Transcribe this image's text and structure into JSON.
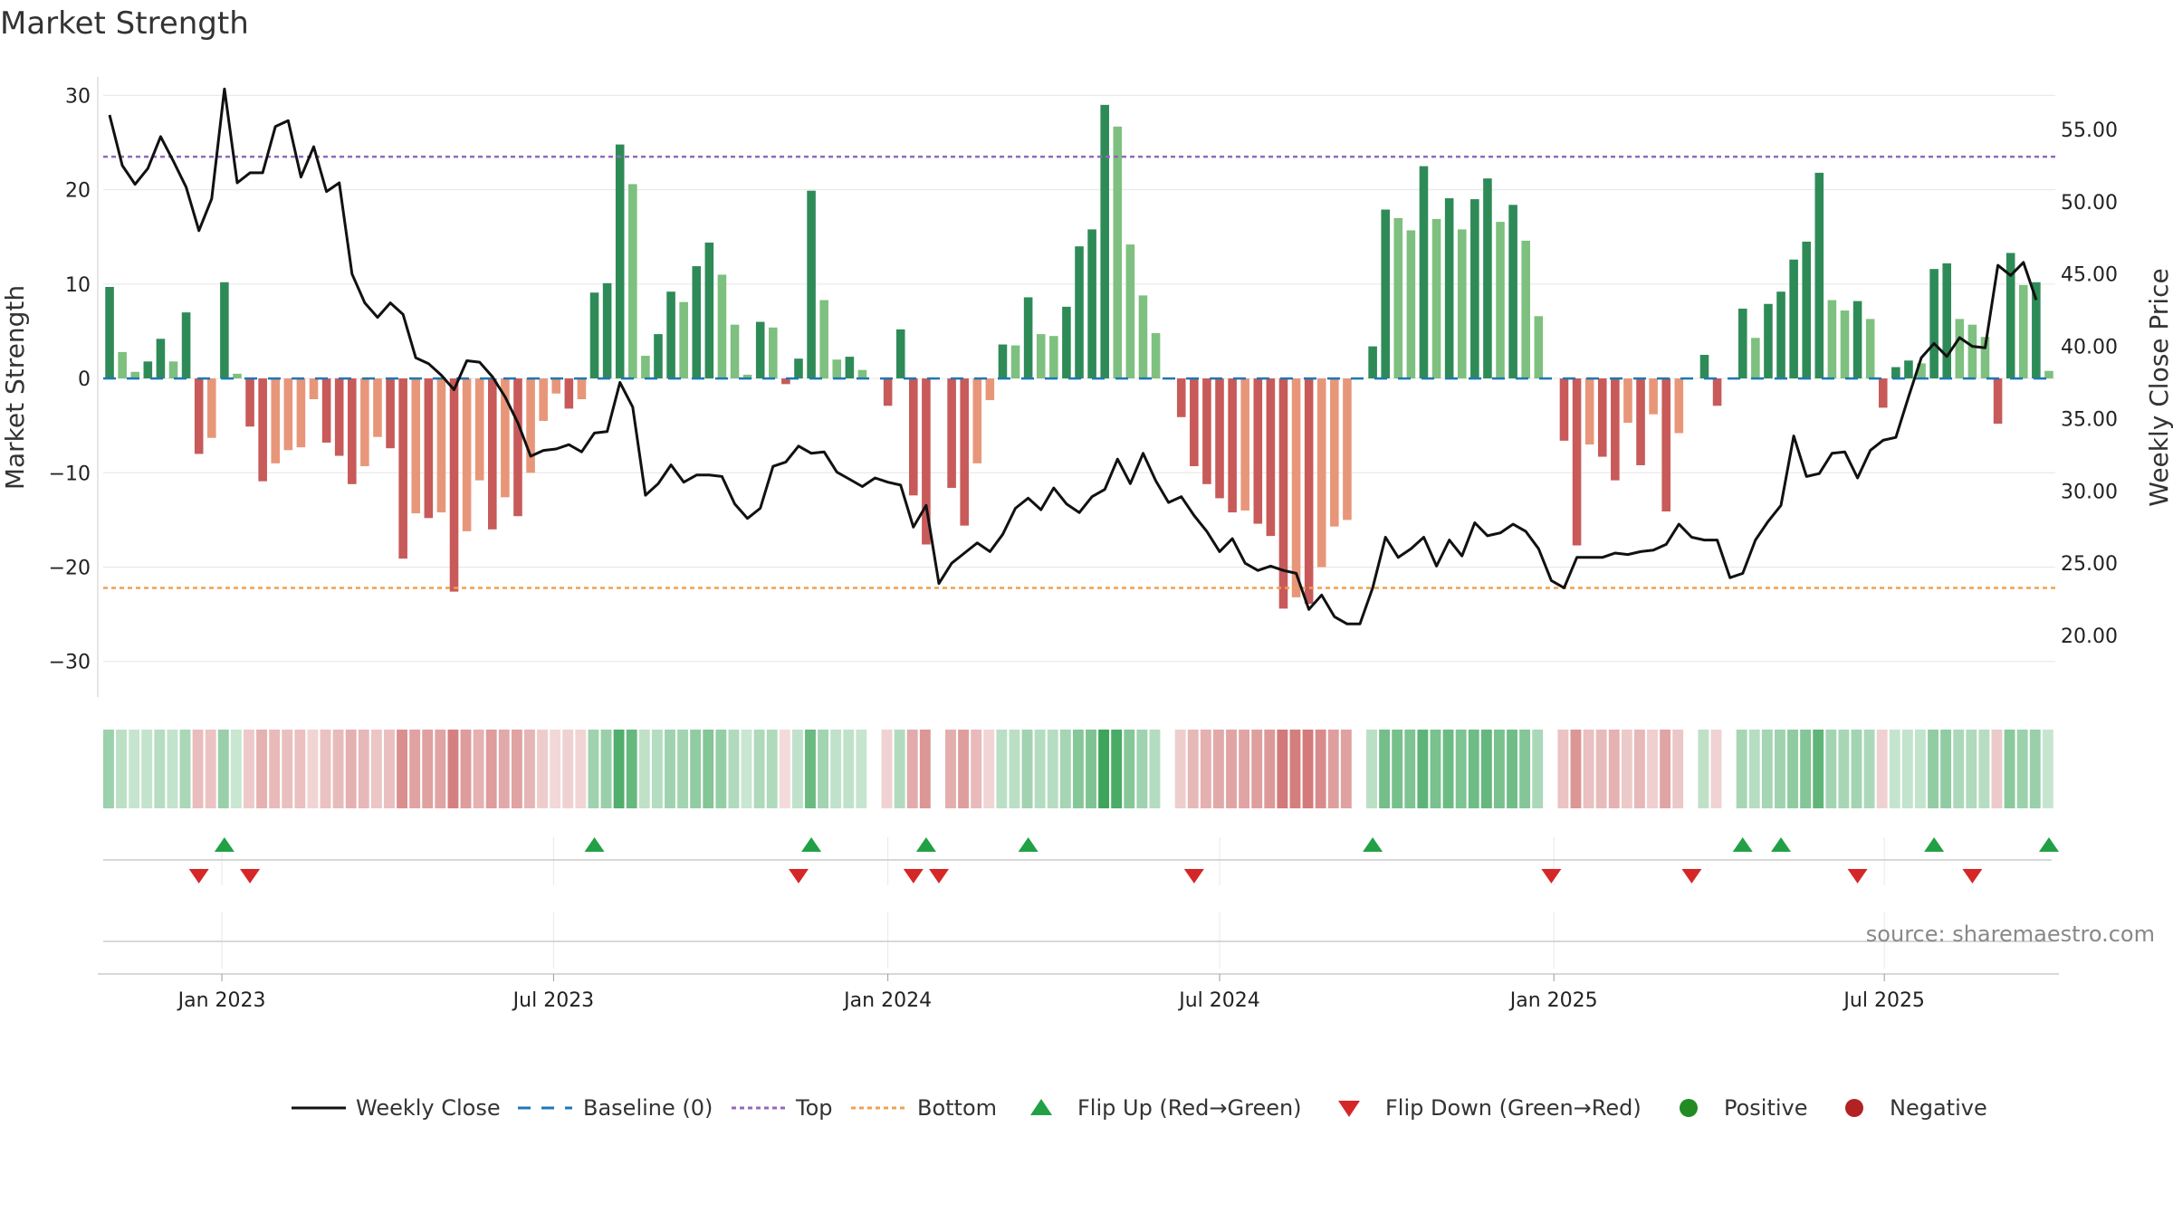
{
  "title": "Market Strength",
  "source": "source: sharemaestro.com",
  "colors": {
    "pos_dark": "#2e8b57",
    "pos_light": "#7ec07f",
    "neg_dark": "#c85a5a",
    "neg_light": "#e8967a",
    "close": "#111111",
    "baseline": "#1f77b4",
    "top": "#9467bd",
    "bottom": "#f0a050",
    "flip_up": "#22a045",
    "flip_down": "#d62728",
    "positive": "#228b22",
    "negative": "#b22222"
  },
  "chart_data": {
    "type": "bar",
    "title": "Market Strength",
    "ylabel": "Market Strength",
    "y2label": "Weekly Close Price",
    "ylim": [
      -33,
      31
    ],
    "y2lim": [
      16.25,
      58.0
    ],
    "yticks": [
      30,
      20,
      10,
      0,
      -10,
      -20,
      -30
    ],
    "ytick_labels": [
      "30",
      "20",
      "10",
      "0",
      "−10",
      "−20",
      "−30"
    ],
    "y2ticks": [
      55,
      50,
      45,
      40,
      35,
      30,
      25,
      20
    ],
    "y2tick_labels": [
      "55.00",
      "50.00",
      "45.00",
      "40.00",
      "35.00",
      "30.00",
      "25.00",
      "20.00"
    ],
    "x_tick_labels": [
      {
        "week": 9.3,
        "label": "Jan 2023"
      },
      {
        "week": 35.3,
        "label": "Jul 2023"
      },
      {
        "week": 61.5,
        "label": "Jan 2024"
      },
      {
        "week": 87.5,
        "label": "Jul 2024"
      },
      {
        "week": 113.7,
        "label": "Jan 2025"
      },
      {
        "week": 139.6,
        "label": "Jul 2025"
      }
    ],
    "first_week": "2022-11-06",
    "top": 23.5,
    "bottom": -22.2,
    "baseline": 0,
    "strength": [
      9.7,
      2.8,
      0.7,
      1.8,
      4.2,
      1.8,
      7.0,
      -8.0,
      -6.3,
      10.2,
      0.5,
      -5.1,
      -10.9,
      -9.0,
      -7.6,
      -7.3,
      -2.2,
      -6.8,
      -8.2,
      -11.2,
      -9.3,
      -6.2,
      -7.4,
      -19.1,
      -14.3,
      -14.8,
      -14.2,
      -22.6,
      -16.2,
      -10.8,
      -16.0,
      -12.6,
      -14.6,
      -10.0,
      -4.5,
      -1.6,
      -3.2,
      -2.2,
      9.1,
      10.1,
      24.8,
      20.6,
      2.4,
      4.7,
      9.2,
      8.1,
      11.9,
      14.4,
      11.0,
      5.7,
      0.4,
      6.0,
      5.4,
      -0.6,
      2.1,
      19.9,
      8.3,
      2.0,
      2.3,
      0.9,
      0,
      -2.9,
      5.2,
      -12.4,
      -17.6,
      0,
      -11.6,
      -15.6,
      -9.0,
      -2.3,
      3.6,
      3.5,
      8.6,
      4.7,
      4.5,
      7.6,
      14.0,
      15.8,
      29.0,
      26.7,
      14.2,
      8.8,
      4.8,
      0,
      -4.1,
      -9.3,
      -11.2,
      -12.7,
      -14.2,
      -14.0,
      -15.4,
      -16.7,
      -24.4,
      -23.2,
      -23.9,
      -20.0,
      -15.7,
      -15.0,
      0,
      3.4,
      17.9,
      17.0,
      15.7,
      22.5,
      16.9,
      19.1,
      15.8,
      19.0,
      21.2,
      16.6,
      18.4,
      14.6,
      6.6,
      0,
      -6.6,
      -17.7,
      -7.0,
      -8.3,
      -10.8,
      -4.7,
      -9.2,
      -3.8,
      -14.1,
      -5.8,
      0,
      2.5,
      -2.9,
      0,
      7.4,
      4.3,
      7.9,
      9.2,
      12.6,
      14.5,
      21.8,
      8.3,
      7.2,
      8.2,
      6.3,
      -3.1,
      1.2,
      1.9,
      1.6,
      11.6,
      12.2,
      6.3,
      5.7,
      4.4,
      -4.8,
      13.3,
      9.9,
      10.2,
      0.8
    ],
    "weekly_close": [
      56.0,
      52.5,
      51.2,
      52.3,
      54.5,
      52.8,
      51.0,
      48.0,
      50.2,
      57.8,
      51.3,
      52.0,
      52.0,
      55.2,
      55.6,
      51.7,
      53.8,
      50.7,
      51.3,
      45.0,
      43.0,
      42.0,
      43.0,
      42.2,
      39.2,
      38.8,
      38.0,
      37.0,
      39.0,
      38.9,
      37.9,
      36.5,
      34.7,
      32.4,
      32.8,
      32.9,
      33.2,
      32.7,
      34.0,
      34.1,
      37.5,
      35.8,
      29.7,
      30.5,
      31.8,
      30.6,
      31.1,
      31.1,
      31.0,
      29.1,
      28.1,
      28.8,
      31.7,
      32.0,
      33.1,
      32.6,
      32.7,
      31.3,
      30.8,
      30.3,
      30.9,
      30.6,
      30.4,
      27.5,
      29.0,
      23.6,
      25.0,
      25.7,
      26.4,
      25.8,
      27.0,
      28.8,
      29.5,
      28.7,
      30.2,
      29.1,
      28.5,
      29.6,
      30.1,
      32.2,
      30.5,
      32.6,
      30.7,
      29.2,
      29.6,
      28.3,
      27.2,
      25.8,
      26.7,
      25.0,
      24.5,
      24.8,
      24.5,
      24.3,
      21.8,
      22.8,
      21.3,
      20.8,
      20.8,
      23.3,
      26.8,
      25.4,
      26.0,
      26.8,
      24.8,
      26.6,
      25.5,
      27.8,
      26.9,
      27.1,
      27.7,
      27.2,
      26.0,
      23.8,
      23.3,
      25.4,
      25.4,
      25.4,
      25.7,
      25.6,
      25.8,
      25.9,
      26.3,
      27.7,
      26.8,
      26.6,
      26.6,
      24.0,
      24.3,
      26.6,
      27.9,
      29.0,
      33.8,
      31.0,
      31.2,
      32.6,
      32.7,
      30.9,
      32.8,
      33.5,
      33.7,
      36.5,
      39.2,
      40.2,
      39.3,
      40.6,
      40.0,
      39.9,
      45.6,
      44.9,
      45.8,
      43.2
    ],
    "flip_up_weeks": [
      9,
      38,
      55,
      64,
      72,
      99,
      128,
      131,
      143,
      152
    ],
    "flip_down_weeks": [
      7,
      11,
      54,
      63,
      65,
      85,
      113,
      124,
      137,
      146
    ],
    "legend": [
      "Weekly Close",
      "Baseline (0)",
      "Top",
      "Bottom",
      "Flip Up (Red→Green)",
      "Flip Down (Green→Red)",
      "Positive",
      "Negative"
    ]
  }
}
